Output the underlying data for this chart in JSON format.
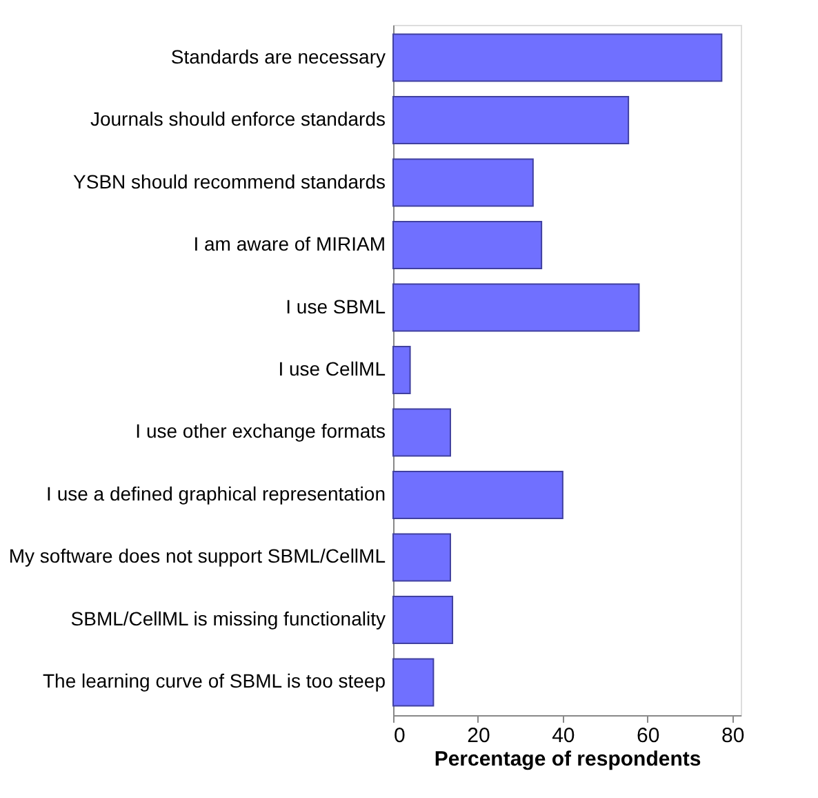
{
  "chart_data": {
    "type": "bar",
    "orientation": "horizontal",
    "xlabel": "Percentage of respondents",
    "categories": [
      "Standards are necessary",
      "Journals should enforce standards",
      "YSBN should recommend standards",
      "I am aware of MIRIAM",
      "I use SBML",
      "I use CellML",
      "I use other exchange formats",
      "I use a defined graphical representation",
      "My software does not support SBML/CellML",
      "SBML/CellML is missing functionality",
      "The learning curve of SBML is too steep"
    ],
    "values": [
      77.5,
      55.5,
      33,
      35,
      58,
      4,
      13.5,
      40,
      13.5,
      14,
      9.5
    ],
    "color": "#7070ff",
    "xlim": [
      0,
      82
    ],
    "xticks": [
      0,
      20,
      40,
      60,
      80
    ],
    "grid": false
  }
}
